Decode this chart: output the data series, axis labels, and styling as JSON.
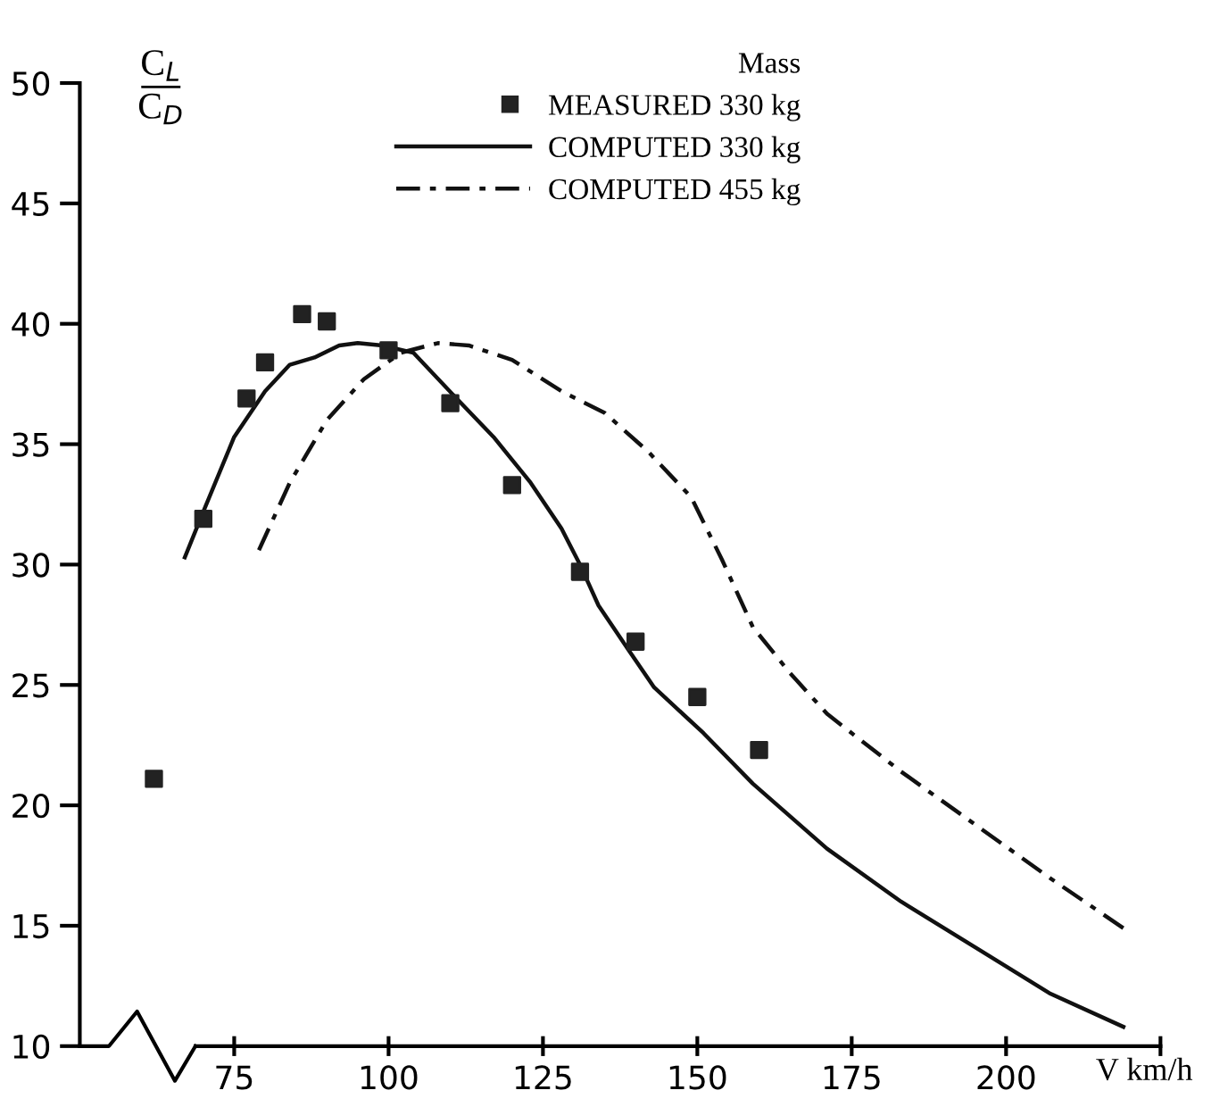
{
  "chart_data": {
    "type": "line",
    "ylabel": "C$_{L}$\nC$_{D}$",
    "xlabel": "V km/h",
    "legend_title": "Mass",
    "legend": "top",
    "grid": false,
    "xlim": [
      50,
      225
    ],
    "ylim": [
      10,
      50
    ],
    "xticks": [
      75,
      100,
      125,
      150,
      175,
      200,
      {
        "value": 225,
        "label": null
      }
    ],
    "yticks": [
      10,
      15,
      20,
      25,
      30,
      35,
      40,
      45,
      50
    ],
    "series": [
      {
        "name": "MEASURED 330 kg",
        "type": "scatter",
        "marker": "square",
        "color": "#222222",
        "x": [
          62,
          70,
          77,
          80,
          86,
          90,
          100,
          110,
          120,
          131,
          140,
          150,
          160
        ],
        "values": [
          21.1,
          31.9,
          36.9,
          38.4,
          40.4,
          40.1,
          38.9,
          36.7,
          33.3,
          29.7,
          26.8,
          24.5,
          22.3
        ]
      },
      {
        "name": "COMPUTED 330 kg",
        "type": "line",
        "line_style": "solid",
        "color": "#111111",
        "x": [
          67,
          70,
          75,
          80,
          84,
          88,
          92,
          95,
          99,
          104,
          111,
          117,
          123,
          128,
          131,
          134,
          139,
          143,
          151,
          159,
          171,
          183,
          195,
          207,
          219
        ],
        "values": [
          30.3,
          32.2,
          35.3,
          37.2,
          38.3,
          38.6,
          39.1,
          39.2,
          39.1,
          38.8,
          36.9,
          35.3,
          33.4,
          31.5,
          30.0,
          28.3,
          26.4,
          24.9,
          23.0,
          20.9,
          18.2,
          16.0,
          14.1,
          12.2,
          10.8
        ]
      },
      {
        "name": "COMPUTED 455 kg",
        "type": "line",
        "line_style": "dashdot",
        "color": "#111111",
        "x": [
          79,
          84,
          90,
          96,
          102,
          108,
          113,
          120,
          128,
          135,
          142,
          149,
          154,
          159,
          165,
          171,
          183,
          195,
          207,
          219
        ],
        "values": [
          30.6,
          33.4,
          36.0,
          37.7,
          38.8,
          39.2,
          39.1,
          38.5,
          37.2,
          36.3,
          34.7,
          32.8,
          30.2,
          27.4,
          25.5,
          23.8,
          21.4,
          19.2,
          17.0,
          14.9
        ]
      }
    ]
  }
}
